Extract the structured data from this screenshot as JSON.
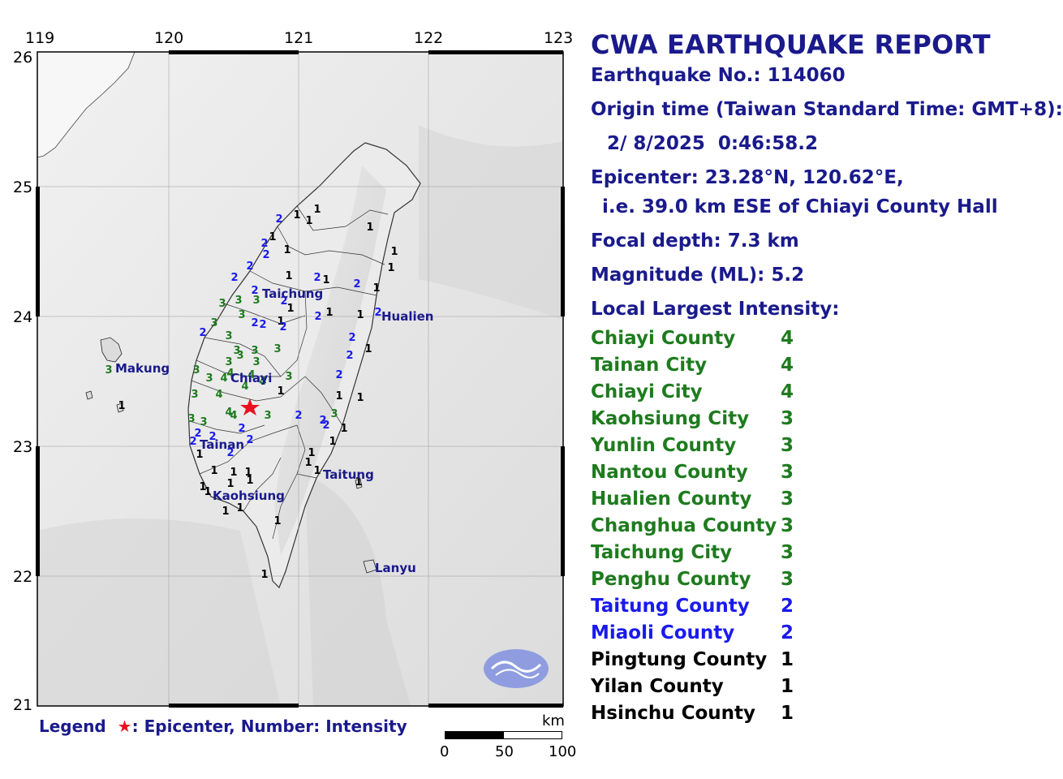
{
  "map": {
    "lon_ticks": [
      "119",
      "120",
      "121",
      "122",
      "123"
    ],
    "lat_ticks": [
      "26",
      "25",
      "24",
      "23",
      "22",
      "21"
    ],
    "city_labels": [
      "Makung",
      "Chiayi",
      "Taichung",
      "Hualien",
      "Tainan",
      "Taitung",
      "Kaohsiung",
      "Lanyu"
    ],
    "epicenter_marker": "red-star",
    "logo": "cwa-logo",
    "colors": {
      "intensity_4": "#1e7b1e",
      "intensity_3": "#1e7b1e",
      "intensity_2": "#1a1aee",
      "intensity_1": "#000000",
      "epicenter": "#e8121e",
      "logo": "#8f9de0"
    }
  },
  "legend": {
    "prefix": "Legend",
    "text": ": Epicenter, Number: Intensity"
  },
  "scalebar": {
    "unit": "km",
    "labels": [
      "0",
      "50",
      "100"
    ]
  },
  "report": {
    "title": "CWA EARTHQUAKE REPORT",
    "earthquake_no": "Earthquake No.: 114060",
    "origin_label": "Origin time (Taiwan Standard Time: GMT+8):",
    "origin_time": "2/ 8/2025  0:46:58.2",
    "epicenter": "Epicenter: 23.28°N, 120.62°E,",
    "epicenter_rel": "i.e. 39.0 km ESE of Chiayi County Hall",
    "focal_depth": "Focal depth: 7.3 km",
    "magnitude": "Magnitude (ML): 5.2",
    "intensity_heading": "Local Largest Intensity:",
    "counties": [
      {
        "name": "Chiayi County",
        "intensity": "4"
      },
      {
        "name": "Tainan City",
        "intensity": "4"
      },
      {
        "name": "Chiayi City",
        "intensity": "4"
      },
      {
        "name": "Kaohsiung City",
        "intensity": "3"
      },
      {
        "name": "Yunlin County",
        "intensity": "3"
      },
      {
        "name": "Nantou County",
        "intensity": "3"
      },
      {
        "name": "Hualien County",
        "intensity": "3"
      },
      {
        "name": "Changhua County",
        "intensity": "3"
      },
      {
        "name": "Taichung City",
        "intensity": "3"
      },
      {
        "name": "Penghu County",
        "intensity": "3"
      },
      {
        "name": "Taitung County",
        "intensity": "2"
      },
      {
        "name": "Miaoli County",
        "intensity": "2"
      },
      {
        "name": "Pingtung County",
        "intensity": "1"
      },
      {
        "name": "Yilan County",
        "intensity": "1"
      },
      {
        "name": "Hsinchu County",
        "intensity": "1"
      }
    ]
  }
}
